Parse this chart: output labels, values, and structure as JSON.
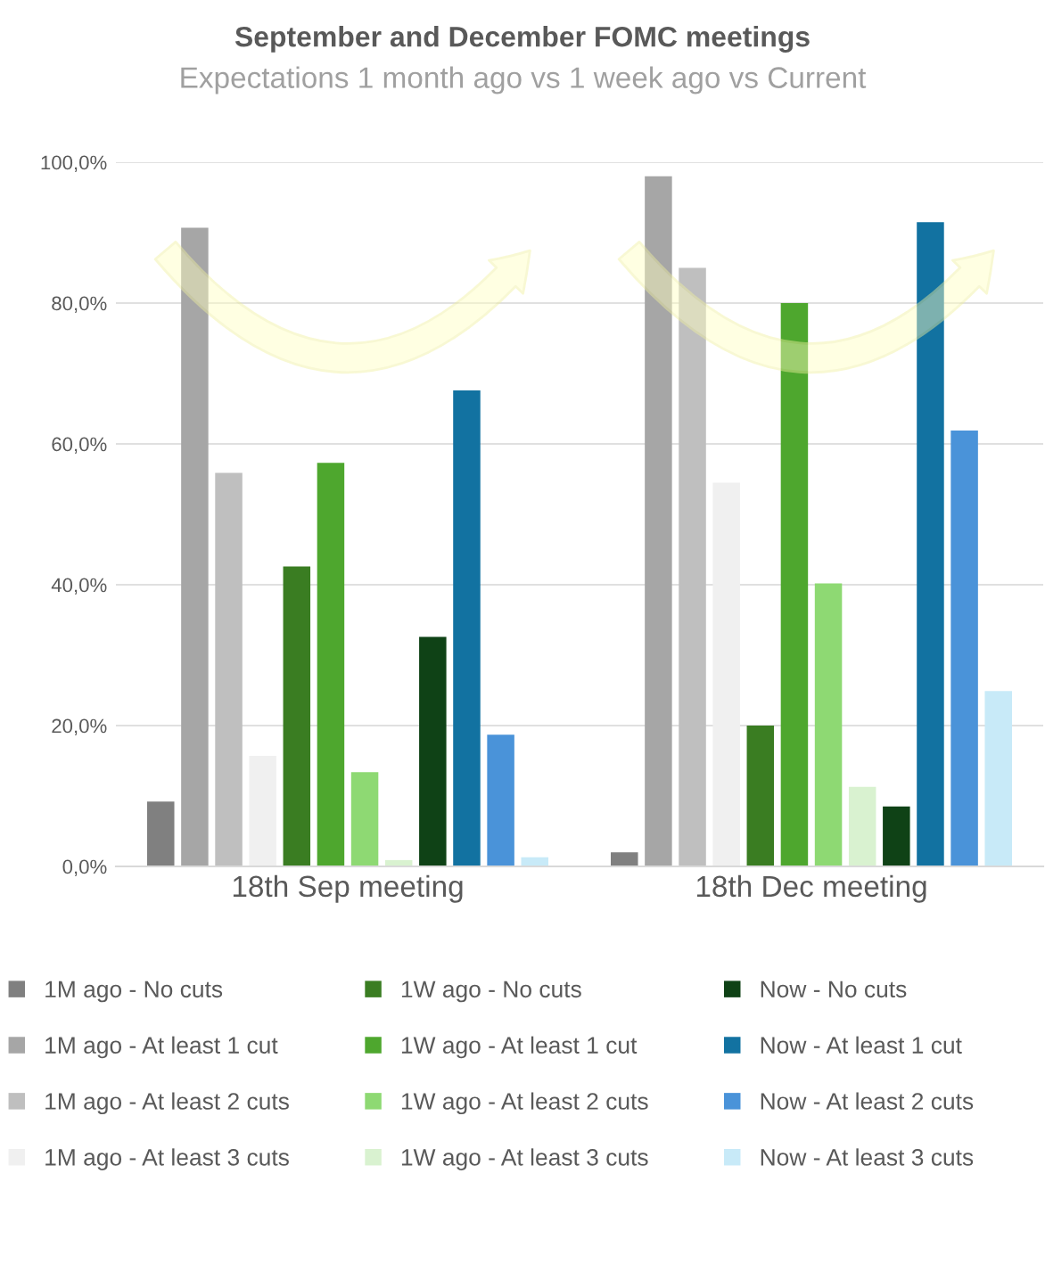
{
  "chart_data": {
    "type": "bar",
    "title": "September and December FOMC meetings",
    "subtitle": "Expectations 1 month ago vs 1 week ago vs Current",
    "categories": [
      "18th Sep meeting",
      "18th Dec meeting"
    ],
    "series": [
      {
        "name": "1M ago - No cuts",
        "color": "#808080",
        "values": [
          9.2,
          2.0
        ]
      },
      {
        "name": "1M ago - At least 1 cut",
        "color": "#a6a6a6",
        "values": [
          90.7,
          98.0
        ]
      },
      {
        "name": "1M ago - At least 2 cuts",
        "color": "#bfbfbf",
        "values": [
          55.9,
          85.0
        ]
      },
      {
        "name": "1M ago - At least 3 cuts",
        "color": "#f0f0f0",
        "values": [
          15.7,
          54.5
        ]
      },
      {
        "name": "1W ago - No cuts",
        "color": "#3a7d22",
        "values": [
          42.6,
          20.0
        ]
      },
      {
        "name": "1W ago - At least 1 cut",
        "color": "#4ea72e",
        "values": [
          57.3,
          80.0
        ]
      },
      {
        "name": "1W ago - At least 2 cuts",
        "color": "#8ed973",
        "values": [
          13.4,
          40.2
        ]
      },
      {
        "name": "1W ago - At least 3 cuts",
        "color": "#d9f2d0",
        "values": [
          0.9,
          11.3
        ]
      },
      {
        "name": "Now - No cuts",
        "color": "#0f4216",
        "values": [
          32.6,
          8.5
        ]
      },
      {
        "name": "Now - At least 1 cut",
        "color": "#1272a1",
        "values": [
          67.6,
          91.5
        ]
      },
      {
        "name": "Now - At least 2 cuts",
        "color": "#4a93d9",
        "values": [
          18.7,
          61.9
        ]
      },
      {
        "name": "Now - At least 3 cuts",
        "color": "#c8eaf8",
        "values": [
          1.3,
          24.9
        ]
      }
    ],
    "ylim": [
      0,
      100
    ],
    "yticks": [
      {
        "value": 0,
        "label": "0,0%"
      },
      {
        "value": 20,
        "label": "20,0%"
      },
      {
        "value": 40,
        "label": "40,0%"
      },
      {
        "value": 60,
        "label": "60,0%"
      },
      {
        "value": 80,
        "label": "80,0%"
      },
      {
        "value": 100,
        "label": "100,0%"
      }
    ],
    "grid": "y",
    "legend": "bottom"
  }
}
